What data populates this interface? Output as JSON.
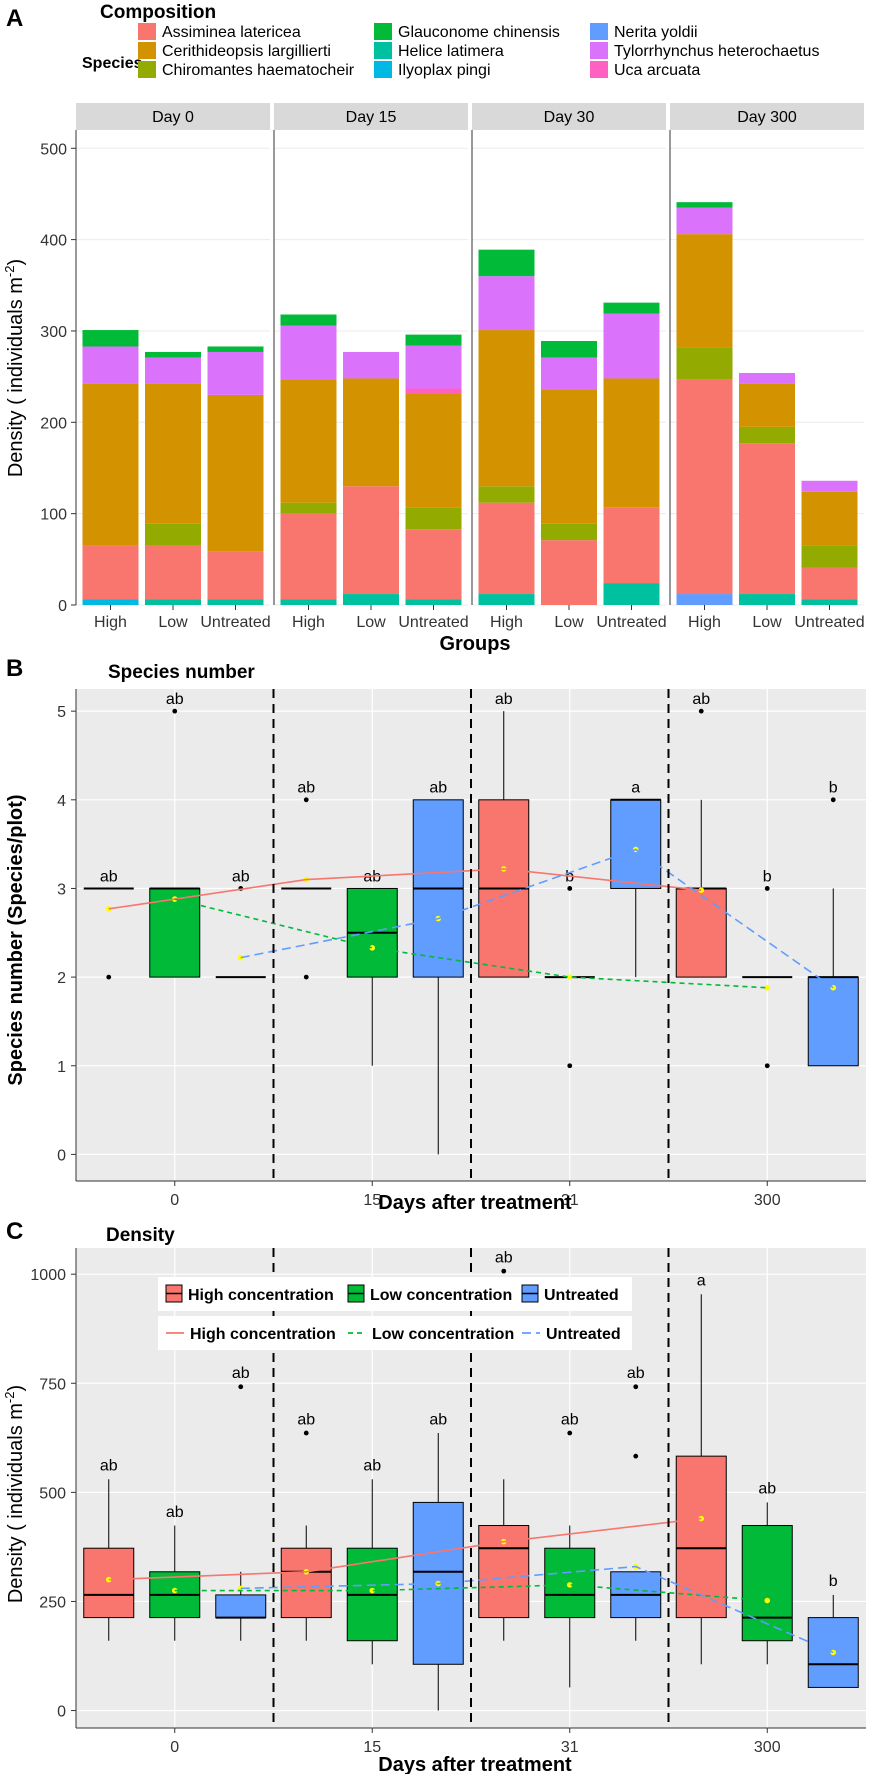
{
  "chart_data": [
    {
      "type": "bar",
      "stacked": true,
      "faceted": true,
      "panel_letter": "A",
      "title": "Composition",
      "legend_title": "Species",
      "legend_placement": "top",
      "xlabel": "Groups",
      "ylabel": "Density ( individuals m",
      "ylabel_sup": "-2",
      "ylabel_close": ")",
      "ylim": [
        0,
        520
      ],
      "yticks": [
        "0",
        "100",
        "200",
        "300",
        "400",
        "500"
      ],
      "species": [
        {
          "name": "Assiminea latericea",
          "color": "#F8766D"
        },
        {
          "name": "Cerithideopsis largillierti",
          "color": "#D39200"
        },
        {
          "name": "Chiromantes haematocheir",
          "color": "#93AA00"
        },
        {
          "name": "Glauconome chinensis",
          "color": "#00BA38"
        },
        {
          "name": "Helice latimera",
          "color": "#00C19F"
        },
        {
          "name": "Ilyoplax pingi",
          "color": "#00B9E3"
        },
        {
          "name": "Nerita yoldii",
          "color": "#619CFF"
        },
        {
          "name": "Tylorrhynchus heterochaetus",
          "color": "#DB72FB"
        },
        {
          "name": "Uca arcuata",
          "color": "#FF61C3"
        }
      ],
      "stack_order": [
        "Nerita yoldii",
        "Ilyoplax pingi",
        "Helice latimera",
        "Assiminea latericea",
        "Chiromantes haematocheir",
        "Cerithideopsis largillierti",
        "Uca arcuata",
        "Tylorrhynchus heterochaetus",
        "Glauconome chinensis"
      ],
      "facets": [
        {
          "label": "Day 0",
          "bars": [
            {
              "group": "High",
              "values": {
                "Ilyoplax pingi": 6,
                "Assiminea latericea": 59,
                "Cerithideopsis largillierti": 177,
                "Tylorrhynchus heterochaetus": 41,
                "Glauconome chinensis": 18
              }
            },
            {
              "group": "Low",
              "values": {
                "Helice latimera": 6,
                "Assiminea latericea": 59,
                "Chiromantes haematocheir": 24,
                "Cerithideopsis largillierti": 153,
                "Tylorrhynchus heterochaetus": 29,
                "Glauconome chinensis": 6
              }
            },
            {
              "group": "Untreated",
              "values": {
                "Helice latimera": 6,
                "Assiminea latericea": 53,
                "Cerithideopsis largillierti": 171,
                "Tylorrhynchus heterochaetus": 47,
                "Glauconome chinensis": 6
              }
            }
          ]
        },
        {
          "label": "Day 15",
          "bars": [
            {
              "group": "High",
              "values": {
                "Helice latimera": 6,
                "Assiminea latericea": 94,
                "Chiromantes haematocheir": 12,
                "Cerithideopsis largillierti": 135,
                "Tylorrhynchus heterochaetus": 59,
                "Glauconome chinensis": 12
              }
            },
            {
              "group": "Low",
              "values": {
                "Helice latimera": 12,
                "Assiminea latericea": 118,
                "Cerithideopsis largillierti": 118,
                "Tylorrhynchus heterochaetus": 29
              }
            },
            {
              "group": "Untreated",
              "values": {
                "Helice latimera": 6,
                "Assiminea latericea": 77,
                "Chiromantes haematocheir": 24,
                "Cerithideopsis largillierti": 124,
                "Uca arcuata": 6,
                "Tylorrhynchus heterochaetus": 47,
                "Glauconome chinensis": 12
              }
            }
          ]
        },
        {
          "label": "Day 30",
          "bars": [
            {
              "group": "High",
              "values": {
                "Helice latimera": 12,
                "Assiminea latericea": 100,
                "Chiromantes haematocheir": 18,
                "Cerithideopsis largillierti": 171,
                "Tylorrhynchus heterochaetus": 59,
                "Glauconome chinensis": 29
              }
            },
            {
              "group": "Low",
              "values": {
                "Assiminea latericea": 71,
                "Chiromantes haematocheir": 18,
                "Cerithideopsis largillierti": 147,
                "Tylorrhynchus heterochaetus": 35,
                "Glauconome chinensis": 18
              }
            },
            {
              "group": "Untreated",
              "values": {
                "Helice latimera": 24,
                "Assiminea latericea": 83,
                "Cerithideopsis largillierti": 141,
                "Tylorrhynchus heterochaetus": 71,
                "Glauconome chinensis": 12
              }
            }
          ]
        },
        {
          "label": "Day 300",
          "bars": [
            {
              "group": "High",
              "values": {
                "Nerita yoldii": 12,
                "Assiminea latericea": 235,
                "Chiromantes haematocheir": 35,
                "Cerithideopsis largillierti": 124,
                "Tylorrhynchus heterochaetus": 29,
                "Glauconome chinensis": 6
              }
            },
            {
              "group": "Low",
              "values": {
                "Helice latimera": 12,
                "Assiminea latericea": 165,
                "Chiromantes haematocheir": 18,
                "Cerithideopsis largillierti": 47,
                "Tylorrhynchus heterochaetus": 12
              }
            },
            {
              "group": "Untreated",
              "values": {
                "Helice latimera": 6,
                "Assiminea latericea": 35,
                "Chiromantes haematocheir": 24,
                "Cerithideopsis largillierti": 59,
                "Tylorrhynchus heterochaetus": 12
              }
            }
          ]
        }
      ]
    },
    {
      "type": "box",
      "panel_letter": "B",
      "title": "Species number",
      "xlabel": "Days after treatment",
      "ylabel": "Species number (Species/plot)",
      "ylim": [
        -0.3,
        5.25
      ],
      "yticks": [
        0,
        1,
        2,
        3,
        4,
        5
      ],
      "yticklabels": [
        "0",
        "1",
        "2",
        "3",
        "4",
        "5"
      ],
      "categories": [
        "0",
        "15",
        "31",
        "300"
      ],
      "groups": [
        "High concentration",
        "Low concentration",
        "Untreated"
      ],
      "colors": {
        "High concentration": "#F8766D",
        "Low concentration": "#00BA38",
        "Untreated": "#619CFF"
      },
      "boxes": [
        {
          "day": "0",
          "group": "High concentration",
          "min": 3,
          "q1": 3,
          "median": 3,
          "q3": 3,
          "max": 3,
          "mean": 2.77,
          "outliers": [
            2
          ],
          "label": "ab",
          "label_y": 3.08
        },
        {
          "day": "0",
          "group": "Low concentration",
          "min": 2,
          "q1": 2,
          "median": 3,
          "q3": 3,
          "max": 3,
          "mean": 2.88,
          "outliers": [
            5
          ],
          "label": "ab",
          "label_y": 5.08
        },
        {
          "day": "0",
          "group": "Untreated",
          "min": 2,
          "q1": 2,
          "median": 2,
          "q3": 2,
          "max": 2,
          "mean": 2.22,
          "outliers": [
            3
          ],
          "label": "ab",
          "label_y": 3.08
        },
        {
          "day": "15",
          "group": "High concentration",
          "min": 3,
          "q1": 3,
          "median": 3,
          "q3": 3,
          "max": 3,
          "mean": 3.1,
          "outliers": [
            2,
            4
          ],
          "label": "ab",
          "label_y": 4.08
        },
        {
          "day": "15",
          "group": "Low concentration",
          "min": 1,
          "q1": 2,
          "median": 2.5,
          "q3": 3,
          "max": 3,
          "mean": 2.33,
          "outliers": [],
          "label": "ab",
          "label_y": 3.08
        },
        {
          "day": "15",
          "group": "Untreated",
          "min": 0,
          "q1": 2,
          "median": 3,
          "q3": 4,
          "max": 4,
          "mean": 2.66,
          "outliers": [],
          "label": "ab",
          "label_y": 4.08
        },
        {
          "day": "31",
          "group": "High concentration",
          "min": 2,
          "q1": 2,
          "median": 3,
          "q3": 4,
          "max": 5,
          "mean": 3.22,
          "outliers": [],
          "label": "ab",
          "label_y": 5.08
        },
        {
          "day": "31",
          "group": "Low concentration",
          "min": 2,
          "q1": 2,
          "median": 2,
          "q3": 2,
          "max": 2,
          "mean": 2.0,
          "outliers": [
            1,
            3
          ],
          "label": "b",
          "label_y": 3.08
        },
        {
          "day": "31",
          "group": "Untreated",
          "min": 2,
          "q1": 3,
          "median": 4,
          "q3": 4,
          "max": 4,
          "mean": 3.44,
          "outliers": [],
          "label": "a",
          "label_y": 4.08
        },
        {
          "day": "300",
          "group": "High concentration",
          "min": 2,
          "q1": 2,
          "median": 3,
          "q3": 3,
          "max": 4,
          "mean": 2.98,
          "outliers": [
            5
          ],
          "label": "ab",
          "label_y": 5.08
        },
        {
          "day": "300",
          "group": "Low concentration",
          "min": 2,
          "q1": 2,
          "median": 2,
          "q3": 2,
          "max": 2,
          "mean": 1.88,
          "outliers": [
            1,
            3
          ],
          "label": "b",
          "label_y": 3.08
        },
        {
          "day": "300",
          "group": "Untreated",
          "min": 1,
          "q1": 1,
          "median": 2,
          "q3": 2,
          "max": 3,
          "mean": 1.88,
          "outliers": [
            4
          ],
          "label": "b",
          "label_y": 4.08
        }
      ],
      "trend_lines": [
        {
          "group": "High concentration",
          "style": "solid",
          "points": [
            [
              0,
              2.77
            ],
            [
              1,
              3.1
            ],
            [
              2,
              3.22
            ],
            [
              3,
              2.98
            ]
          ]
        },
        {
          "group": "Low concentration",
          "style": "dashed",
          "points": [
            [
              0,
              2.88
            ],
            [
              1,
              2.33
            ],
            [
              2,
              2.0
            ],
            [
              3,
              1.88
            ]
          ]
        },
        {
          "group": "Untreated",
          "style": "longdash",
          "points": [
            [
              0,
              2.22
            ],
            [
              1,
              2.66
            ],
            [
              2,
              3.44
            ],
            [
              3,
              1.88
            ]
          ]
        }
      ]
    },
    {
      "type": "box",
      "panel_letter": "C",
      "title": "Density",
      "xlabel": "Days after treatment",
      "ylabel": "Density ( individuals m",
      "ylabel_sup": "-2",
      "ylabel_close": ")",
      "ylim": [
        -40,
        1060
      ],
      "yticks": [
        0,
        250,
        500,
        750,
        1000
      ],
      "yticklabels": [
        "0",
        "250",
        "500",
        "750",
        "1000"
      ],
      "categories": [
        "0",
        "15",
        "31",
        "300"
      ],
      "groups": [
        "High concentration",
        "Low concentration",
        "Untreated"
      ],
      "colors": {
        "High concentration": "#F8766D",
        "Low concentration": "#00BA38",
        "Untreated": "#619CFF"
      },
      "legend_box_labels": [
        "High concentration",
        "Low concentration",
        "Untreated"
      ],
      "legend_line_labels": [
        "High concentration",
        "Low concentration",
        "Untreated"
      ],
      "boxes": [
        {
          "day": "0",
          "group": "High concentration",
          "min": 160,
          "q1": 213,
          "median": 265,
          "q3": 372,
          "max": 530,
          "mean": 300,
          "outliers": [],
          "label": "ab",
          "label_y": 550
        },
        {
          "day": "0",
          "group": "Low concentration",
          "min": 160,
          "q1": 213,
          "median": 265,
          "q3": 318,
          "max": 424,
          "mean": 275,
          "outliers": [],
          "label": "ab",
          "label_y": 444
        },
        {
          "day": "0",
          "group": "Untreated",
          "min": 160,
          "q1": 213,
          "median": 213,
          "q3": 265,
          "max": 318,
          "mean": 280,
          "outliers": [
            742
          ],
          "label": "ab",
          "label_y": 762
        },
        {
          "day": "15",
          "group": "High concentration",
          "min": 160,
          "q1": 213,
          "median": 318,
          "q3": 372,
          "max": 424,
          "mean": 318,
          "outliers": [
            636
          ],
          "label": "ab",
          "label_y": 656
        },
        {
          "day": "15",
          "group": "Low concentration",
          "min": 106,
          "q1": 160,
          "median": 265,
          "q3": 372,
          "max": 530,
          "mean": 275,
          "outliers": [],
          "label": "ab",
          "label_y": 550
        },
        {
          "day": "15",
          "group": "Untreated",
          "min": 0,
          "q1": 106,
          "median": 318,
          "q3": 477,
          "max": 636,
          "mean": 291,
          "outliers": [],
          "label": "ab",
          "label_y": 656
        },
        {
          "day": "31",
          "group": "High concentration",
          "min": 160,
          "q1": 213,
          "median": 372,
          "q3": 424,
          "max": 530,
          "mean": 387,
          "outliers": [
            1007
          ],
          "label": "ab",
          "label_y": 1027
        },
        {
          "day": "31",
          "group": "Low concentration",
          "min": 53,
          "q1": 213,
          "median": 265,
          "q3": 372,
          "max": 424,
          "mean": 288,
          "outliers": [
            636
          ],
          "label": "ab",
          "label_y": 656
        },
        {
          "day": "31",
          "group": "Untreated",
          "min": 160,
          "q1": 213,
          "median": 265,
          "q3": 318,
          "max": 318,
          "mean": 330,
          "outliers": [
            583,
            742
          ],
          "label": "ab",
          "label_y": 762
        },
        {
          "day": "300",
          "group": "High concentration",
          "min": 106,
          "q1": 213,
          "median": 372,
          "q3": 583,
          "max": 954,
          "mean": 440,
          "outliers": [],
          "label": "a",
          "label_y": 974
        },
        {
          "day": "300",
          "group": "Low concentration",
          "min": 106,
          "q1": 160,
          "median": 213,
          "q3": 424,
          "max": 477,
          "mean": 252,
          "outliers": [],
          "label": "ab",
          "label_y": 497
        },
        {
          "day": "300",
          "group": "Untreated",
          "min": 53,
          "q1": 53,
          "median": 106,
          "q3": 213,
          "max": 265,
          "mean": 133,
          "outliers": [],
          "label": "b",
          "label_y": 285
        }
      ],
      "trend_lines": [
        {
          "group": "High concentration",
          "style": "solid",
          "points": [
            [
              0,
              300
            ],
            [
              1,
              318
            ],
            [
              2,
              387
            ],
            [
              3,
              440
            ]
          ]
        },
        {
          "group": "Low concentration",
          "style": "dashed",
          "points": [
            [
              0,
              275
            ],
            [
              1,
              275
            ],
            [
              2,
              288
            ],
            [
              3,
              252
            ]
          ]
        },
        {
          "group": "Untreated",
          "style": "longdash",
          "points": [
            [
              0,
              280
            ],
            [
              1,
              291
            ],
            [
              2,
              330
            ],
            [
              3,
              133
            ]
          ]
        }
      ]
    }
  ]
}
